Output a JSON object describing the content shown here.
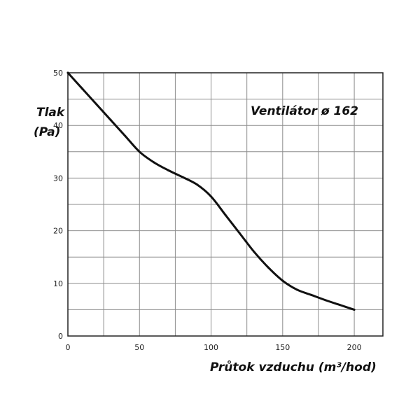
{
  "chart_data": {
    "type": "line",
    "title": "Ventilátor ø 162",
    "ylabel_line1": "Tlak",
    "ylabel_line2": "(Pa)",
    "xlabel": "Průtok vzduchu (m³/hod)",
    "xlim": [
      0,
      220
    ],
    "ylim": [
      0,
      50
    ],
    "x_ticks": [
      0,
      50,
      100,
      150,
      200
    ],
    "y_ticks": [
      0,
      10,
      20,
      30,
      40,
      50
    ],
    "grid": true,
    "series": [
      {
        "x": [
          0,
          10,
          20,
          30,
          40,
          50,
          60,
          70,
          80,
          90,
          100,
          110,
          120,
          130,
          140,
          150,
          160,
          170,
          180,
          190,
          200
        ],
        "y": [
          50,
          47,
          44,
          41,
          38,
          35,
          33,
          31.5,
          30.2,
          28.8,
          26.5,
          23,
          19.5,
          16,
          13,
          10.5,
          8.8,
          7.8,
          6.8,
          5.9,
          5
        ]
      }
    ]
  }
}
